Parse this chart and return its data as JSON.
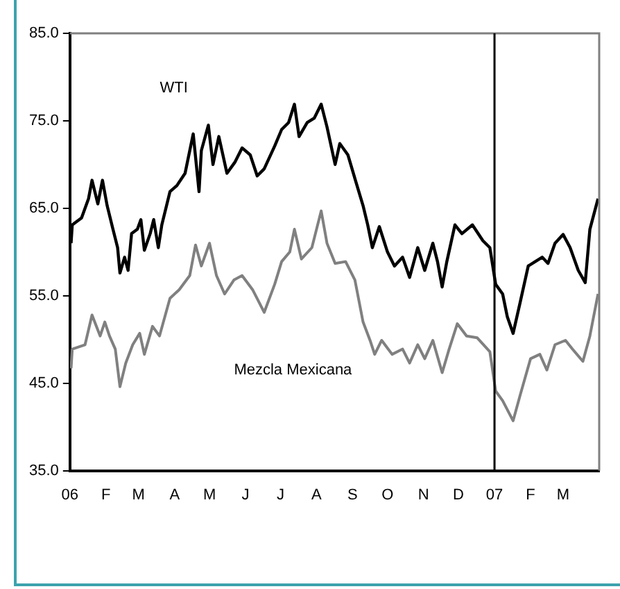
{
  "chart_data": {
    "type": "line",
    "xlim": [
      "2006-01-01",
      "2007-04-01"
    ],
    "xticks": [
      {
        "value": "2006-01",
        "label": "06"
      },
      {
        "value": "2006-02",
        "label": "F"
      },
      {
        "value": "2006-03",
        "label": "M"
      },
      {
        "value": "2006-04",
        "label": "A"
      },
      {
        "value": "2006-05",
        "label": "M"
      },
      {
        "value": "2006-06",
        "label": "J"
      },
      {
        "value": "2006-07",
        "label": "J"
      },
      {
        "value": "2006-08",
        "label": "A"
      },
      {
        "value": "2006-09",
        "label": "S"
      },
      {
        "value": "2006-10",
        "label": "O"
      },
      {
        "value": "2006-11",
        "label": "N"
      },
      {
        "value": "2006-12",
        "label": "D"
      },
      {
        "value": "2007-01",
        "label": "07"
      },
      {
        "value": "2007-02",
        "label": "F"
      },
      {
        "value": "2007-03",
        "label": "M"
      }
    ],
    "ylim": [
      35,
      85
    ],
    "yticks": [
      {
        "value": 35,
        "label": "35.0"
      },
      {
        "value": 45,
        "label": "45.0"
      },
      {
        "value": 55,
        "label": "55.0"
      },
      {
        "value": 65,
        "label": "65.0"
      },
      {
        "value": 75,
        "label": "75.0"
      },
      {
        "value": 85,
        "label": "85.0"
      }
    ],
    "grid": false,
    "legend": false,
    "marker": "none",
    "line_style": "solid",
    "ref_lines": [
      {
        "axis": "x",
        "value": "2007-01-01",
        "color": "#000000"
      }
    ],
    "series": [
      {
        "name": "WTI",
        "color": "#000000",
        "x": [
          "2006-01-02",
          "2006-01-03",
          "2006-01-11",
          "2006-01-17",
          "2006-01-20",
          "2006-01-25",
          "2006-01-29",
          "2006-02-02",
          "2006-02-07",
          "2006-02-11",
          "2006-02-13",
          "2006-02-17",
          "2006-02-20",
          "2006-02-23",
          "2006-02-28",
          "2006-03-03",
          "2006-03-06",
          "2006-03-11",
          "2006-03-14",
          "2006-03-18",
          "2006-03-21",
          "2006-03-28",
          "2006-04-03",
          "2006-04-10",
          "2006-04-17",
          "2006-04-22",
          "2006-04-24",
          "2006-04-30",
          "2006-05-04",
          "2006-05-09",
          "2006-05-16",
          "2006-05-23",
          "2006-05-29",
          "2006-06-05",
          "2006-06-11",
          "2006-06-17",
          "2006-06-26",
          "2006-07-02",
          "2006-07-08",
          "2006-07-13",
          "2006-07-17",
          "2006-07-24",
          "2006-07-30",
          "2006-08-05",
          "2006-08-10",
          "2006-08-17",
          "2006-08-21",
          "2006-08-28",
          "2006-09-03",
          "2006-09-10",
          "2006-09-14",
          "2006-09-18",
          "2006-09-24",
          "2006-10-01",
          "2006-10-07",
          "2006-10-14",
          "2006-10-20",
          "2006-10-27",
          "2006-11-02",
          "2006-11-09",
          "2006-11-13",
          "2006-11-17",
          "2006-11-21",
          "2006-11-28",
          "2006-12-04",
          "2006-12-13",
          "2006-12-22",
          "2006-12-28",
          "2007-01-02",
          "2007-01-08",
          "2007-01-12",
          "2007-01-17",
          "2007-01-23",
          "2007-01-30",
          "2007-02-05",
          "2007-02-11",
          "2007-02-16",
          "2007-02-22",
          "2007-03-01",
          "2007-03-07",
          "2007-03-14",
          "2007-03-20",
          "2007-03-24",
          "2007-03-31"
        ],
        "values": [
          61.0,
          63.1,
          63.9,
          66.1,
          68.2,
          65.5,
          68.2,
          65.3,
          62.6,
          60.5,
          57.6,
          59.4,
          57.9,
          62.1,
          62.6,
          63.7,
          60.2,
          62.1,
          63.7,
          60.5,
          63.1,
          66.9,
          67.6,
          69.0,
          73.5,
          66.9,
          71.6,
          74.5,
          70.0,
          73.2,
          69.0,
          70.3,
          71.9,
          71.1,
          68.7,
          69.5,
          72.1,
          74.0,
          74.8,
          76.9,
          73.2,
          74.8,
          75.3,
          76.9,
          74.3,
          70.0,
          72.4,
          71.1,
          68.4,
          65.3,
          63.1,
          60.5,
          62.9,
          60.0,
          58.4,
          59.4,
          57.1,
          60.5,
          57.9,
          61.0,
          58.9,
          56.0,
          58.9,
          63.1,
          62.1,
          63.1,
          61.3,
          60.5,
          56.3,
          55.2,
          52.6,
          50.7,
          54.2,
          58.4,
          58.9,
          59.4,
          58.7,
          61.0,
          62.0,
          60.5,
          57.9,
          56.5,
          62.6,
          66.1
        ]
      },
      {
        "name": "Mezcla Mexicana",
        "color": "#808080",
        "x": [
          "2006-01-02",
          "2006-01-03",
          "2006-01-14",
          "2006-01-20",
          "2006-01-27",
          "2006-01-31",
          "2006-02-04",
          "2006-02-09",
          "2006-02-13",
          "2006-02-18",
          "2006-02-24",
          "2006-03-02",
          "2006-03-06",
          "2006-03-13",
          "2006-03-19",
          "2006-03-28",
          "2006-04-05",
          "2006-04-14",
          "2006-04-19",
          "2006-04-24",
          "2006-05-01",
          "2006-05-07",
          "2006-05-14",
          "2006-05-22",
          "2006-05-29",
          "2006-06-07",
          "2006-06-17",
          "2006-06-26",
          "2006-07-02",
          "2006-07-09",
          "2006-07-13",
          "2006-07-19",
          "2006-07-28",
          "2006-08-05",
          "2006-08-10",
          "2006-08-17",
          "2006-08-26",
          "2006-09-03",
          "2006-09-10",
          "2006-09-16",
          "2006-09-20",
          "2006-09-26",
          "2006-10-05",
          "2006-10-14",
          "2006-10-20",
          "2006-10-27",
          "2006-11-02",
          "2006-11-09",
          "2006-11-17",
          "2006-11-23",
          "2006-11-30",
          "2006-12-08",
          "2006-12-17",
          "2006-12-28",
          "2007-01-02",
          "2007-01-08",
          "2007-01-17",
          "2007-01-23",
          "2007-02-01",
          "2007-02-09",
          "2007-02-15",
          "2007-02-22",
          "2007-03-03",
          "2007-03-09",
          "2007-03-18",
          "2007-03-24",
          "2007-03-31"
        ],
        "values": [
          46.7,
          48.9,
          49.4,
          52.8,
          50.4,
          52.0,
          50.4,
          48.9,
          44.6,
          47.3,
          49.4,
          50.7,
          48.3,
          51.5,
          50.4,
          54.7,
          55.7,
          57.3,
          60.8,
          58.4,
          61.0,
          57.3,
          55.2,
          56.8,
          57.3,
          55.7,
          53.1,
          56.3,
          58.9,
          60.0,
          62.6,
          59.2,
          60.5,
          64.7,
          61.0,
          58.7,
          58.9,
          56.8,
          52.0,
          49.9,
          48.3,
          49.9,
          48.3,
          48.9,
          47.3,
          49.4,
          47.8,
          49.9,
          46.2,
          48.9,
          51.8,
          50.4,
          50.2,
          48.6,
          44.1,
          43.0,
          40.7,
          43.6,
          47.8,
          48.3,
          46.5,
          49.4,
          49.9,
          48.9,
          47.5,
          50.4,
          55.2
        ]
      }
    ]
  }
}
